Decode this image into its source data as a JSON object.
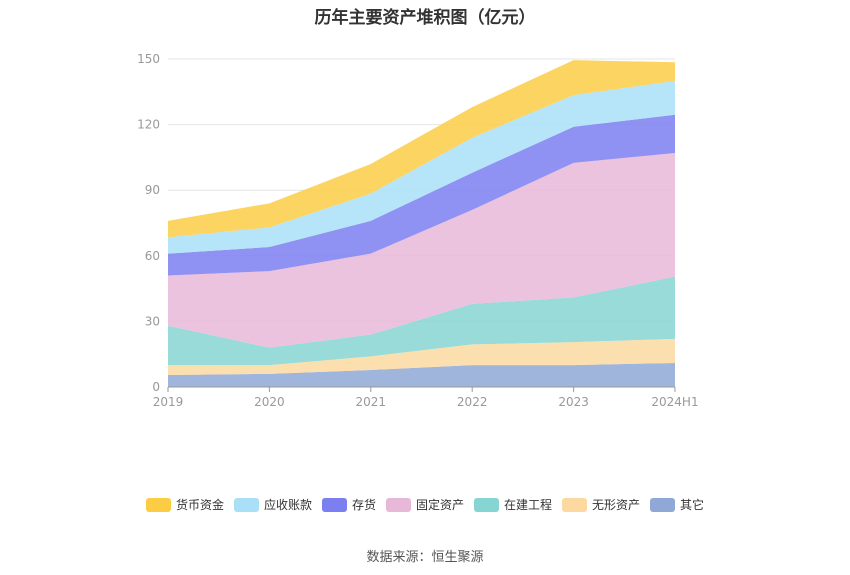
{
  "chart_data": {
    "type": "area",
    "stacked": true,
    "title": "历年主要资产堆积图（亿元）",
    "categories": [
      "2019",
      "2020",
      "2021",
      "2022",
      "2023",
      "2024H1"
    ],
    "ylim": [
      0,
      150
    ],
    "yticks": [
      "0",
      "30",
      "60",
      "90",
      "120",
      "150"
    ],
    "grid": true,
    "legend_position": "bottom",
    "series": [
      {
        "name": "其它",
        "color": "#8fa8d6",
        "values": [
          5.5,
          6.0,
          7.8,
          10.0,
          10.0,
          11.0
        ]
      },
      {
        "name": "无形资产",
        "color": "#fcd9a0",
        "values": [
          4.5,
          4.0,
          6.2,
          9.5,
          10.5,
          11.0
        ]
      },
      {
        "name": "在建工程",
        "color": "#86d5d2",
        "values": [
          18.0,
          8.0,
          10.0,
          18.5,
          20.5,
          28.5
        ]
      },
      {
        "name": "固定资产",
        "color": "#e8b8d9",
        "values": [
          23.0,
          35.0,
          37.0,
          43.0,
          61.5,
          56.5
        ]
      },
      {
        "name": "存货",
        "color": "#7b7ff0",
        "values": [
          10.0,
          11.0,
          15.0,
          17.0,
          16.5,
          17.5
        ]
      },
      {
        "name": "应收账款",
        "color": "#a9dff7",
        "values": [
          7.5,
          9.0,
          12.5,
          16.0,
          14.5,
          15.5
        ]
      },
      {
        "name": "货币资金",
        "color": "#fccc45",
        "values": [
          7.5,
          11.0,
          13.5,
          14.0,
          16.0,
          8.5
        ]
      }
    ]
  },
  "legend_order": [
    "货币资金",
    "应收账款",
    "存货",
    "固定资产",
    "在建工程",
    "无形资产",
    "其它"
  ],
  "source": "数据来源：恒生聚源"
}
